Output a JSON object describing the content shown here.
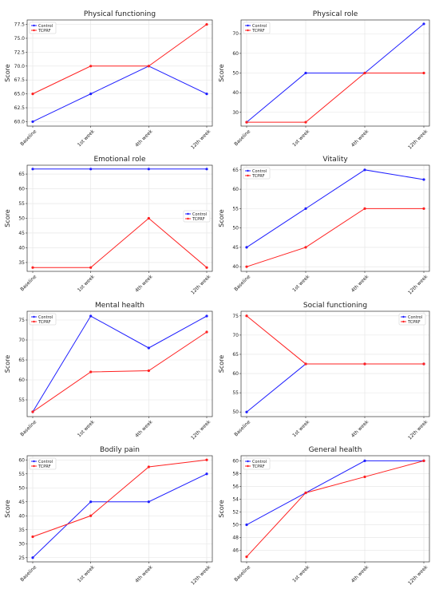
{
  "colors": {
    "control": "#1f1fff",
    "tcprf": "#ff2020"
  },
  "chart_data": [
    {
      "type": "line",
      "title": "Physical functioning",
      "ylabel": "Score",
      "categories": [
        "Baseline",
        "1st week",
        "4th week",
        "12th week"
      ],
      "ylim": [
        59.2,
        78.3
      ],
      "yticks": [
        "60.0",
        "62.5",
        "65.0",
        "67.5",
        "70.0",
        "72.5",
        "75.0",
        "77.5"
      ],
      "grid": true,
      "legend_position": "top-left",
      "series": [
        {
          "name": "Control",
          "values": [
            60,
            65,
            70,
            65
          ]
        },
        {
          "name": "TCPRF",
          "values": [
            65,
            70,
            70,
            77.5
          ]
        }
      ]
    },
    {
      "type": "line",
      "title": "Physical role",
      "ylabel": "Score",
      "categories": [
        "Baseline",
        "1st week",
        "4th week",
        "12th week"
      ],
      "ylim": [
        23,
        77
      ],
      "yticks": [
        "30",
        "40",
        "50",
        "60",
        "70"
      ],
      "grid": true,
      "legend_position": "top-left",
      "series": [
        {
          "name": "Control",
          "values": [
            25,
            50,
            50,
            75
          ]
        },
        {
          "name": "TCPRF",
          "values": [
            25,
            25,
            50,
            50
          ]
        }
      ]
    },
    {
      "type": "line",
      "title": "Emotional role",
      "ylabel": "Score",
      "categories": [
        "Baseline",
        "1st week",
        "4th week",
        "12th week"
      ],
      "ylim": [
        32,
        68
      ],
      "yticks": [
        "35",
        "40",
        "45",
        "50",
        "55",
        "60",
        "65"
      ],
      "grid": true,
      "legend_position": "center-right",
      "series": [
        {
          "name": "Control",
          "values": [
            66.7,
            66.7,
            66.7,
            66.7
          ]
        },
        {
          "name": "TCPRF",
          "values": [
            33.3,
            33.3,
            50,
            33.3
          ]
        }
      ]
    },
    {
      "type": "line",
      "title": "Vitality",
      "ylabel": "Score",
      "categories": [
        "Baseline",
        "1st week",
        "4th week",
        "12th week"
      ],
      "ylim": [
        38.8,
        66.2
      ],
      "yticks": [
        "40",
        "45",
        "50",
        "55",
        "60",
        "65"
      ],
      "grid": true,
      "legend_position": "top-left",
      "series": [
        {
          "name": "Control",
          "values": [
            45,
            55,
            65,
            62.5
          ]
        },
        {
          "name": "TCPRF",
          "values": [
            40,
            45,
            55,
            55
          ]
        }
      ]
    },
    {
      "type": "line",
      "title": "Mental health",
      "ylabel": "Score",
      "categories": [
        "Baseline",
        "1st week",
        "4th week",
        "12th week"
      ],
      "ylim": [
        50.8,
        77.2
      ],
      "yticks": [
        "55",
        "60",
        "65",
        "70",
        "75"
      ],
      "grid": true,
      "legend_position": "top-left",
      "series": [
        {
          "name": "Control",
          "values": [
            52,
            76,
            68,
            76
          ]
        },
        {
          "name": "TCPRF",
          "values": [
            52,
            62,
            62.3,
            72
          ]
        }
      ]
    },
    {
      "type": "line",
      "title": "Social functioning",
      "ylabel": "Score",
      "categories": [
        "Baseline",
        "1st week",
        "4th week",
        "12th week"
      ],
      "ylim": [
        48.8,
        76.2
      ],
      "yticks": [
        "50",
        "55",
        "60",
        "65",
        "70",
        "75"
      ],
      "grid": true,
      "legend_position": "top-right",
      "series": [
        {
          "name": "Control",
          "values": [
            50,
            62.5,
            62.5,
            62.5
          ]
        },
        {
          "name": "TCPRF",
          "values": [
            75,
            62.5,
            62.5,
            62.5
          ]
        }
      ]
    },
    {
      "type": "line",
      "title": "Bodily pain",
      "ylabel": "Score",
      "categories": [
        "Baseline",
        "1st week",
        "4th week",
        "12th week"
      ],
      "ylim": [
        23.5,
        61.5
      ],
      "yticks": [
        "25",
        "30",
        "35",
        "40",
        "45",
        "50",
        "55",
        "60"
      ],
      "grid": true,
      "legend_position": "top-left",
      "series": [
        {
          "name": "Control",
          "values": [
            25,
            45,
            45,
            55
          ]
        },
        {
          "name": "TCPRF",
          "values": [
            32.5,
            40,
            57.5,
            60
          ]
        }
      ]
    },
    {
      "type": "line",
      "title": "General health",
      "ylabel": "Score",
      "categories": [
        "Baseline",
        "1st week",
        "4th week",
        "12th week"
      ],
      "ylim": [
        44.2,
        60.8
      ],
      "yticks": [
        "46",
        "48",
        "50",
        "52",
        "54",
        "56",
        "58",
        "60"
      ],
      "grid": true,
      "legend_position": "top-left",
      "series": [
        {
          "name": "Control",
          "values": [
            50,
            55,
            60,
            60
          ]
        },
        {
          "name": "TCPRF",
          "values": [
            45,
            55,
            57.5,
            60
          ]
        }
      ]
    }
  ]
}
